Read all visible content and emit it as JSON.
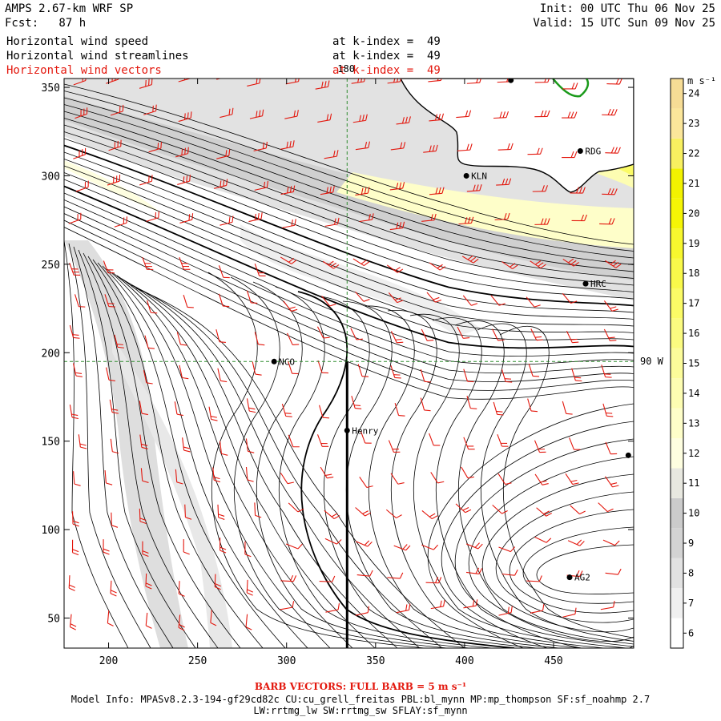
{
  "header": {
    "model_title": "AMPS 2.67-km WRF SP",
    "forecast": "Fcst:   87 h",
    "init": "Init: 00 UTC Thu 06 Nov 25",
    "valid": "Valid: 15 UTC Sun 09 Nov 25"
  },
  "fields": [
    {
      "name": "Horizontal wind speed",
      "level": "at k-index =  49",
      "color": "#000000"
    },
    {
      "name": "Horizontal wind streamlines",
      "level": "at k-index =  49",
      "color": "#000000"
    },
    {
      "name": "Horizontal wind vectors",
      "level": "at k-index =  49",
      "color": "#e3170d"
    }
  ],
  "map": {
    "x_axis": {
      "range": [
        175,
        495
      ],
      "ticks": [
        200,
        250,
        300,
        350,
        400,
        450
      ]
    },
    "y_axis": {
      "range": [
        33,
        355
      ],
      "ticks": [
        50,
        100,
        150,
        200,
        250,
        300,
        350
      ]
    },
    "meridian_label": "180",
    "parallel_label": "90 W",
    "meridian_x": 334,
    "parallel_y": 195,
    "stations": [
      {
        "id": "LPT",
        "label": "",
        "x": 426,
        "y": 354
      },
      {
        "id": "RDG",
        "label": "RDG",
        "x": 465,
        "y": 314
      },
      {
        "id": "KLN",
        "label": "KLN",
        "x": 401,
        "y": 300
      },
      {
        "id": "HRC",
        "label": "HRC",
        "x": 468,
        "y": 239
      },
      {
        "id": "NCO",
        "label": "NCO",
        "x": 293,
        "y": 195
      },
      {
        "id": "Henry",
        "label": "Henry",
        "x": 334,
        "y": 156
      },
      {
        "id": "E",
        "label": "",
        "x": 492,
        "y": 142
      },
      {
        "id": "AG2",
        "label": "AG2",
        "x": 459,
        "y": 73
      }
    ],
    "colors": {
      "barb": "#e3170d",
      "grid": "#2e8b2e",
      "streamline": "#000000"
    }
  },
  "colorbar": {
    "unit": "m s⁻¹",
    "levels": [
      6,
      7,
      8,
      9,
      10,
      11,
      12,
      13,
      14,
      15,
      16,
      17,
      18,
      19,
      20,
      21,
      22,
      23,
      24
    ],
    "colors": [
      "#ffffff",
      "#f0f0f0",
      "#e2e2e2",
      "#d3d3d3",
      "#cbcbcb",
      "#e8e8e0",
      "#fefee0",
      "#fefec9",
      "#fdfdb2",
      "#fcfc9a",
      "#fbfb80",
      "#fbfb66",
      "#f9f94a",
      "#f7f72e",
      "#f5f505",
      "#f2f200",
      "#f8f060",
      "#fbe69a",
      "#f6dc95"
    ]
  },
  "footer": {
    "barb_note": "BARB VECTORS:  FULL BARB = 5 m s⁻¹",
    "model_info_1": "Model Info: MPASv8.2.3-194-gf29cd82c CU:cu_grell_freitas PBL:bl_mynn MP:mp_thompson SF:sf_noahmp 2.7",
    "model_info_2": "LW:rrtmg_lw SW:rrtmg_sw SFLAY:sf_mynn"
  }
}
